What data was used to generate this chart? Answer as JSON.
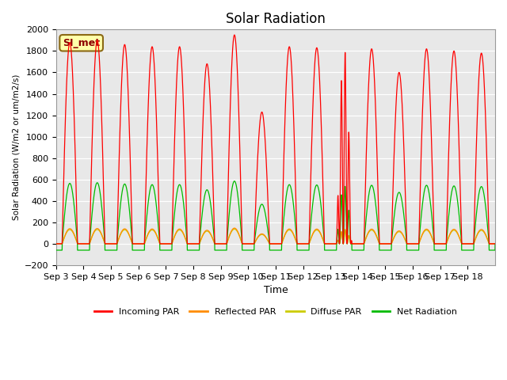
{
  "title": "Solar Radiation",
  "ylabel": "Solar Radiation (W/m2 or um/m2/s)",
  "xlabel": "Time",
  "ylim": [
    -200,
    2000
  ],
  "annotation": "SI_met",
  "x_tick_labels": [
    "Sep 3",
    "Sep 4",
    "Sep 5",
    "Sep 6",
    "Sep 7",
    "Sep 8",
    "Sep 9",
    "Sep 10",
    "Sep 11",
    "Sep 12",
    "Sep 13",
    "Sep 14",
    "Sep 15",
    "Sep 16",
    "Sep 17",
    "Sep 18"
  ],
  "colors": {
    "incoming": "#FF0000",
    "reflected": "#FF8C00",
    "diffuse": "#CCCC00",
    "net": "#00BB00",
    "background": "#E8E8E8",
    "annotation_bg": "#FFFFAA",
    "annotation_border": "#8B6914"
  },
  "legend": [
    "Incoming PAR",
    "Reflected PAR",
    "Diffuse PAR",
    "Net Radiation"
  ],
  "n_days": 16,
  "incoming_peaks": [
    1880,
    1900,
    1860,
    1840,
    1840,
    1680,
    1950,
    1230,
    1840,
    1830,
    1820,
    1820,
    1600,
    1820,
    1800,
    1780
  ],
  "yticks": [
    -200,
    0,
    200,
    400,
    600,
    800,
    1000,
    1200,
    1400,
    1600,
    1800,
    2000
  ]
}
